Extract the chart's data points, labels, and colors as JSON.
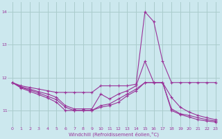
{
  "xlabel": "Windchill (Refroidissement éolien,°C)",
  "background_color": "#cce8ee",
  "grid_color": "#aacccc",
  "line_color": "#993399",
  "x_hours": [
    0,
    1,
    2,
    3,
    4,
    5,
    6,
    7,
    8,
    9,
    10,
    11,
    12,
    13,
    14,
    15,
    16,
    17,
    18,
    19,
    20,
    21,
    22,
    23
  ],
  "xlim": [
    -0.5,
    23.5
  ],
  "ylim": [
    10.5,
    14.3
  ],
  "yticks": [
    11,
    12,
    13,
    14
  ],
  "xticks": [
    0,
    1,
    2,
    3,
    4,
    5,
    6,
    7,
    8,
    9,
    10,
    11,
    12,
    13,
    14,
    15,
    16,
    17,
    18,
    19,
    20,
    21,
    22,
    23
  ],
  "lines": [
    [
      11.85,
      11.75,
      11.7,
      11.65,
      11.6,
      11.55,
      11.55,
      11.55,
      11.55,
      11.55,
      11.75,
      11.75,
      11.75,
      11.75,
      11.8,
      14.0,
      13.7,
      12.5,
      11.85,
      11.85,
      11.85,
      11.85,
      11.85,
      11.85
    ],
    [
      11.85,
      11.72,
      11.65,
      11.57,
      11.5,
      11.4,
      11.15,
      11.05,
      11.05,
      11.05,
      11.5,
      11.35,
      11.5,
      11.6,
      11.75,
      12.5,
      11.85,
      11.85,
      11.4,
      11.1,
      10.95,
      10.85,
      10.78,
      10.72
    ],
    [
      11.85,
      11.7,
      11.62,
      11.53,
      11.43,
      11.33,
      11.1,
      11.0,
      11.0,
      11.0,
      11.15,
      11.2,
      11.35,
      11.5,
      11.65,
      11.85,
      11.85,
      11.85,
      11.05,
      10.9,
      10.85,
      10.78,
      10.72,
      10.68
    ],
    [
      11.85,
      11.68,
      11.58,
      11.48,
      11.38,
      11.25,
      11.0,
      11.0,
      11.0,
      11.0,
      11.1,
      11.15,
      11.25,
      11.45,
      11.6,
      11.85,
      11.85,
      11.85,
      11.0,
      10.88,
      10.8,
      10.72,
      10.68,
      10.65
    ]
  ]
}
